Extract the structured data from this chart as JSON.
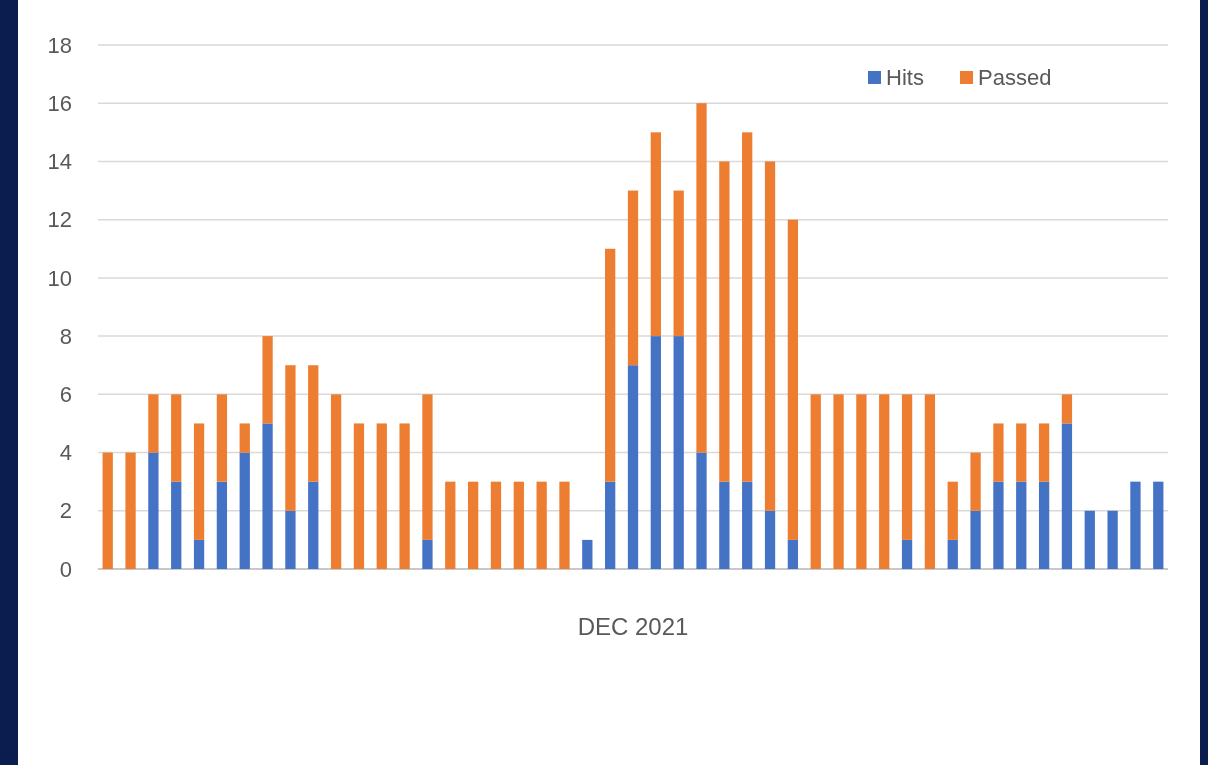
{
  "chart_data": {
    "type": "bar",
    "stacked": true,
    "xlabel": "DEC 2021",
    "categories": [
      null,
      null,
      null,
      null,
      null,
      null,
      null,
      null,
      null,
      null,
      null,
      null,
      null,
      null,
      null,
      null,
      null,
      null,
      null,
      null,
      null,
      null,
      null,
      null,
      null,
      null,
      null,
      null,
      null,
      null,
      null,
      null,
      null,
      null,
      null,
      null,
      null,
      null,
      null,
      null,
      null,
      null,
      null,
      null,
      null,
      null,
      null
    ],
    "series": [
      {
        "name": "Hits",
        "color": "#4472c4",
        "values": [
          0,
          0,
          4,
          3,
          1,
          3,
          4,
          5,
          2,
          3,
          0,
          0,
          0,
          0,
          1,
          0,
          0,
          0,
          0,
          0,
          0,
          1,
          3,
          7,
          8,
          8,
          4,
          3,
          3,
          2,
          1,
          0,
          0,
          0,
          0,
          1,
          0,
          1,
          2,
          3,
          3,
          3,
          5,
          2,
          2,
          3,
          3
        ]
      },
      {
        "name": "Passed",
        "color": "#ed7d31",
        "values": [
          4,
          4,
          2,
          3,
          4,
          3,
          1,
          3,
          5,
          4,
          6,
          5,
          5,
          5,
          5,
          3,
          3,
          3,
          3,
          3,
          3,
          0,
          8,
          6,
          7,
          5,
          12,
          11,
          12,
          12,
          11,
          6,
          6,
          6,
          6,
          5,
          6,
          2,
          2,
          2,
          2,
          2,
          1,
          0,
          0,
          0,
          0
        ]
      }
    ],
    "ylim": [
      0,
      18
    ],
    "yticks": [
      0,
      2,
      4,
      6,
      8,
      10,
      12,
      14,
      16,
      18
    ],
    "grid": "y",
    "legend": "top right"
  }
}
